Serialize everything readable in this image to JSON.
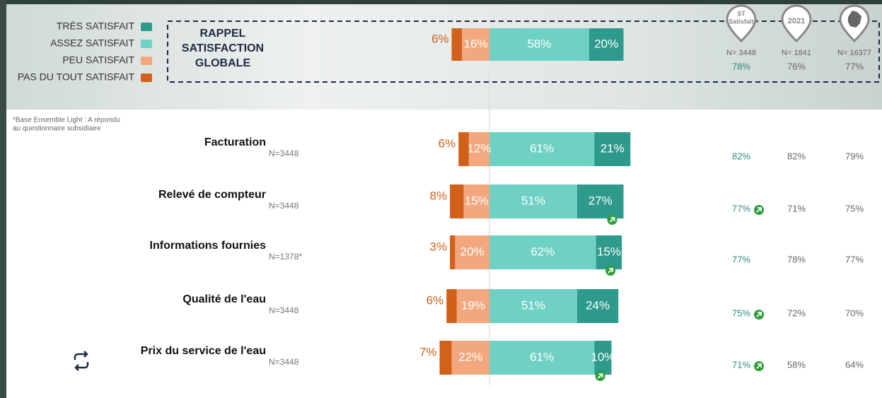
{
  "chart_data": {
    "type": "diverging-bar",
    "footnote": [
      "*Base Ensemble Light : A répondu",
      "au questionnaire subsidiaire"
    ],
    "series": [
      {
        "name": "TRÈS SATISFAIT",
        "color": "#2e9a8c",
        "side": "right",
        "values": [
          21,
          27,
          15,
          24,
          10
        ],
        "value_labels": [
          "21%",
          "27%",
          "15%",
          "24%",
          "10%"
        ]
      },
      {
        "name": "ASSEZ SATISFAIT",
        "color": "#6fd0c4",
        "side": "right",
        "values": [
          61,
          51,
          62,
          51,
          61
        ],
        "value_labels": [
          "61%",
          "51%",
          "62%",
          "51%",
          "61%"
        ]
      },
      {
        "name": "PEU SATISFAIT",
        "color": "#f2a77e",
        "side": "left",
        "values": [
          12,
          15,
          20,
          19,
          22
        ],
        "value_labels": [
          "12%",
          "15%",
          "20%",
          "19%",
          "22%"
        ]
      },
      {
        "name": "PAS DU TOUT SATISFAIT",
        "color": "#d1601b",
        "side": "left",
        "values": [
          6,
          8,
          3,
          6,
          7
        ],
        "value_labels": [
          "6%",
          "8%",
          "3%",
          "6%",
          "7%"
        ]
      }
    ],
    "categories": [
      "Facturation",
      "Relevé de compteur",
      "Informations fournies",
      "Qualité de l'eau",
      "Prix du service de l'eau"
    ],
    "sample_sizes": [
      "N=3448",
      "N=3448",
      "N=1378*",
      "N=3448",
      "N=3448"
    ],
    "global": {
      "title": [
        "RAPPEL",
        "SATISFACTION",
        "GLOBALE"
      ],
      "values": [
        20,
        58,
        16,
        6
      ],
      "value_labels": [
        "20%",
        "58%",
        "16%",
        "6%"
      ]
    },
    "bar_arrows": [
      false,
      true,
      true,
      false,
      true
    ],
    "columns": [
      {
        "header": [
          "ST",
          "Satisfait"
        ],
        "n": "N= 3448",
        "global": "78%",
        "values": [
          "82%",
          "77%",
          "77%",
          "75%",
          "71%"
        ],
        "arrows": [
          false,
          true,
          false,
          true,
          true
        ],
        "color": "#2e8a80"
      },
      {
        "header": [
          "2021"
        ],
        "n": "N= 1841",
        "global": "76%",
        "values": [
          "82%",
          "71%",
          "78%",
          "72%",
          "58%"
        ],
        "arrows": [
          false,
          false,
          false,
          false,
          false
        ],
        "color": "#666666"
      },
      {
        "header": [],
        "n": "N= 16377",
        "global": "77%",
        "values": [
          "79%",
          "75%",
          "77%",
          "70%",
          "64%"
        ],
        "arrows": [
          false,
          false,
          false,
          false,
          false
        ],
        "color": "#666666"
      }
    ]
  }
}
